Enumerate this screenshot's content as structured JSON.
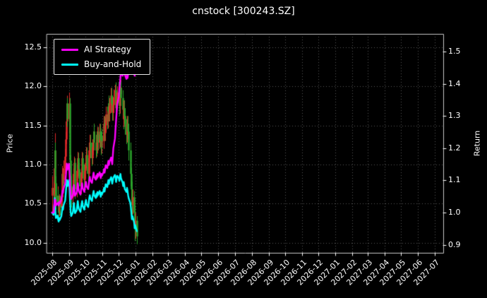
{
  "chart_data": {
    "type": "candlestick+line",
    "title": "cnstock [300243.SZ]",
    "ylabel_left": "Price",
    "ylabel_right": "Return",
    "background": "#000000",
    "text_color": "#ffffff",
    "grid": {
      "color": "#ffffff",
      "alpha": 0.35,
      "style": "dotted"
    },
    "legend_position": "upper-left",
    "x_range_days": [
      -10,
      715
    ],
    "price_range": [
      9.87,
      12.67
    ],
    "return_range": [
      0.875,
      1.555
    ],
    "price_ticks": [
      10.0,
      10.5,
      11.0,
      11.5,
      12.0,
      12.5
    ],
    "return_ticks": [
      0.9,
      1.0,
      1.1,
      1.2,
      1.3,
      1.4,
      1.5
    ],
    "x_ticks": {
      "labels": [
        "2025-08",
        "2025-09",
        "2025-10",
        "2025-11",
        "2025-12",
        "2026-01",
        "2026-02",
        "2026-03",
        "2026-04",
        "2026-05",
        "2026-06",
        "2026-07",
        "2026-08",
        "2026-09",
        "2026-10",
        "2026-11",
        "2026-12",
        "2027-01",
        "2027-02",
        "2027-03",
        "2027-04",
        "2027-05",
        "2027-06",
        "2027-07"
      ],
      "days": [
        0,
        31,
        61,
        92,
        122,
        153,
        184,
        212,
        243,
        273,
        304,
        334,
        365,
        396,
        426,
        457,
        487,
        518,
        549,
        577,
        608,
        638,
        669,
        699
      ]
    },
    "candles": {
      "up_color": "#e02828",
      "down_color": "#2aa22a",
      "days": [
        0,
        3,
        4,
        5,
        6,
        7,
        10,
        11,
        12,
        13,
        14,
        17,
        18,
        19,
        20,
        21,
        24,
        25,
        26,
        27,
        28,
        31,
        32,
        33,
        34,
        35,
        38,
        39,
        40,
        41,
        42,
        45,
        46,
        47,
        48,
        49,
        52,
        53,
        54,
        55,
        56,
        59,
        60,
        61,
        62,
        63,
        66,
        67,
        68,
        69,
        70,
        73,
        74,
        75,
        76,
        77,
        80,
        81,
        82,
        83,
        84,
        87,
        88,
        89,
        90,
        91,
        94,
        95,
        96,
        97,
        98,
        101,
        102,
        103,
        104,
        105,
        108,
        109,
        110,
        111,
        112,
        115,
        116,
        117,
        118,
        119,
        122,
        123,
        124,
        125,
        126,
        129,
        130,
        131,
        132,
        133,
        136,
        137,
        138,
        139,
        140,
        143,
        144,
        145,
        146,
        147,
        150,
        151,
        152,
        155
      ],
      "open": [
        10.6,
        10.7,
        10.62,
        10.95,
        11.18,
        10.76,
        10.52,
        10.6,
        10.48,
        10.4,
        10.52,
        10.45,
        10.58,
        10.72,
        10.88,
        10.8,
        10.95,
        11.1,
        11.32,
        11.55,
        11.78,
        11.58,
        11.78,
        11.45,
        11.05,
        10.72,
        10.58,
        10.7,
        10.88,
        11.02,
        10.82,
        10.68,
        10.78,
        10.92,
        11.08,
        10.94,
        10.82,
        10.72,
        10.88,
        10.98,
        11.08,
        10.92,
        10.8,
        10.92,
        11.02,
        11.12,
        10.98,
        10.88,
        11.02,
        11.18,
        11.28,
        11.18,
        11.08,
        11.22,
        11.32,
        11.42,
        11.28,
        11.18,
        11.32,
        11.22,
        11.38,
        11.28,
        11.42,
        11.32,
        11.22,
        11.36,
        11.3,
        11.42,
        11.52,
        11.4,
        11.5,
        11.64,
        11.55,
        11.68,
        11.78,
        11.65,
        11.75,
        11.88,
        11.78,
        11.66,
        11.76,
        11.86,
        11.95,
        11.86,
        11.72,
        11.82,
        11.92,
        11.85,
        11.75,
        11.9,
        11.98,
        11.85,
        11.7,
        11.58,
        11.72,
        11.62,
        11.48,
        11.38,
        11.52,
        11.42,
        11.28,
        11.18,
        11.02,
        10.88,
        10.68,
        10.48,
        10.58,
        10.38,
        10.18,
        10.28
      ],
      "high": [
        10.85,
        10.78,
        11.05,
        11.4,
        11.28,
        10.85,
        10.72,
        10.68,
        10.55,
        10.62,
        10.6,
        10.66,
        10.82,
        10.98,
        10.95,
        11.05,
        11.2,
        11.42,
        11.65,
        11.88,
        11.85,
        11.92,
        11.85,
        11.55,
        11.12,
        10.85,
        10.8,
        10.95,
        11.1,
        11.08,
        10.92,
        10.88,
        11.0,
        11.16,
        11.15,
        11.02,
        10.9,
        10.95,
        11.06,
        11.16,
        11.15,
        11.0,
        11.0,
        11.12,
        11.22,
        11.22,
        11.08,
        11.12,
        11.28,
        11.38,
        11.38,
        11.28,
        11.32,
        11.42,
        11.52,
        11.52,
        11.38,
        11.42,
        11.42,
        11.48,
        11.48,
        11.52,
        11.52,
        11.42,
        11.46,
        11.46,
        11.52,
        11.62,
        11.62,
        11.6,
        11.74,
        11.74,
        11.78,
        11.88,
        11.88,
        11.85,
        11.98,
        11.98,
        11.88,
        11.86,
        11.96,
        12.02,
        12.05,
        11.96,
        11.92,
        12.0,
        12.05,
        11.95,
        12.0,
        12.08,
        12.06,
        11.95,
        11.8,
        11.82,
        11.82,
        11.72,
        11.58,
        11.62,
        11.62,
        11.52,
        11.38,
        11.28,
        11.1,
        10.96,
        10.78,
        10.68,
        10.66,
        10.48,
        10.38,
        10.34
      ],
      "low": [
        10.35,
        10.5,
        10.55,
        10.85,
        10.6,
        10.42,
        10.45,
        10.38,
        10.28,
        10.34,
        10.35,
        10.4,
        10.52,
        10.66,
        10.72,
        10.75,
        10.88,
        11.05,
        11.26,
        11.5,
        11.48,
        11.4,
        11.3,
        10.95,
        10.58,
        10.45,
        10.48,
        10.6,
        10.78,
        10.72,
        10.56,
        10.58,
        10.68,
        10.84,
        10.85,
        10.72,
        10.6,
        10.62,
        10.78,
        10.88,
        10.82,
        10.7,
        10.72,
        10.82,
        10.95,
        10.88,
        10.78,
        10.8,
        10.95,
        11.08,
        11.08,
        10.98,
        11.0,
        11.12,
        11.22,
        11.18,
        11.08,
        11.1,
        11.12,
        11.14,
        11.18,
        11.2,
        11.22,
        11.12,
        11.14,
        11.2,
        11.2,
        11.32,
        11.3,
        11.3,
        11.42,
        11.45,
        11.46,
        11.58,
        11.55,
        11.55,
        11.66,
        11.68,
        11.56,
        11.56,
        11.66,
        11.76,
        11.76,
        11.62,
        11.62,
        11.72,
        11.75,
        11.62,
        11.65,
        11.8,
        11.75,
        11.6,
        11.45,
        11.48,
        11.52,
        11.38,
        11.26,
        11.28,
        11.32,
        11.16,
        11.05,
        10.88,
        10.72,
        10.5,
        10.3,
        10.36,
        10.22,
        10.02,
        10.05,
        9.98
      ],
      "close": [
        10.7,
        10.62,
        10.95,
        11.18,
        10.76,
        10.52,
        10.6,
        10.48,
        10.4,
        10.52,
        10.45,
        10.58,
        10.72,
        10.88,
        10.8,
        10.95,
        11.1,
        11.32,
        11.55,
        11.78,
        11.58,
        11.78,
        11.45,
        11.05,
        10.72,
        10.58,
        10.7,
        10.88,
        11.02,
        10.82,
        10.68,
        10.78,
        10.92,
        11.08,
        10.94,
        10.82,
        10.72,
        10.88,
        10.98,
        11.08,
        10.92,
        10.8,
        10.92,
        11.02,
        11.12,
        10.98,
        10.88,
        11.02,
        11.18,
        11.28,
        11.18,
        11.08,
        11.22,
        11.32,
        11.42,
        11.28,
        11.18,
        11.32,
        11.22,
        11.38,
        11.28,
        11.42,
        11.32,
        11.22,
        11.36,
        11.3,
        11.42,
        11.52,
        11.4,
        11.5,
        11.64,
        11.55,
        11.68,
        11.78,
        11.65,
        11.75,
        11.88,
        11.78,
        11.66,
        11.76,
        11.86,
        11.95,
        11.86,
        11.72,
        11.82,
        11.92,
        11.85,
        11.75,
        11.9,
        11.98,
        11.85,
        11.7,
        11.58,
        11.72,
        11.62,
        11.48,
        11.38,
        11.52,
        11.42,
        11.28,
        11.18,
        11.02,
        10.88,
        10.68,
        10.48,
        10.58,
        10.38,
        10.18,
        10.28,
        10.08
      ]
    },
    "series": [
      {
        "name": "AI Strategy",
        "color": "#ff00ff",
        "axis": "return",
        "values": [
          1.0,
          1.0,
          1.018,
          1.04,
          1.04,
          1.022,
          1.03,
          1.03,
          1.022,
          1.033,
          1.028,
          1.04,
          1.053,
          1.068,
          1.061,
          1.075,
          1.09,
          1.11,
          1.131,
          1.152,
          1.133,
          1.152,
          1.12,
          1.086,
          1.056,
          1.042,
          1.054,
          1.071,
          1.085,
          1.066,
          1.052,
          1.062,
          1.075,
          1.091,
          1.078,
          1.066,
          1.056,
          1.071,
          1.081,
          1.091,
          1.076,
          1.064,
          1.076,
          1.086,
          1.095,
          1.082,
          1.073,
          1.086,
          1.101,
          1.111,
          1.101,
          1.092,
          1.105,
          1.114,
          1.124,
          1.111,
          1.102,
          1.115,
          1.106,
          1.12,
          1.111,
          1.125,
          1.116,
          1.107,
          1.12,
          1.114,
          1.125,
          1.135,
          1.124,
          1.133,
          1.147,
          1.138,
          1.151,
          1.161,
          1.148,
          1.158,
          1.171,
          1.161,
          1.15,
          1.175,
          1.2,
          1.23,
          1.26,
          1.285,
          1.31,
          1.335,
          1.36,
          1.385,
          1.4,
          1.42,
          1.438,
          1.425,
          1.438,
          1.452,
          1.44,
          1.428,
          1.415,
          1.428,
          1.418,
          1.43,
          1.442,
          1.436,
          1.448,
          1.44,
          1.432,
          1.44,
          1.432,
          1.425,
          1.432,
          1.438
        ]
      },
      {
        "name": "Buy-and-Hold",
        "color": "#00ffff",
        "axis": "return",
        "values": [
          1.0,
          0.993,
          1.023,
          1.045,
          1.006,
          0.983,
          0.991,
          0.979,
          0.972,
          0.983,
          0.977,
          0.989,
          1.002,
          1.017,
          1.009,
          1.023,
          1.037,
          1.058,
          1.079,
          1.101,
          1.082,
          1.101,
          1.07,
          1.033,
          1.002,
          0.989,
          1.0,
          1.017,
          1.03,
          1.011,
          0.998,
          1.007,
          1.021,
          1.036,
          1.022,
          1.011,
          1.002,
          1.017,
          1.026,
          1.036,
          1.021,
          1.009,
          1.021,
          1.03,
          1.039,
          1.026,
          1.017,
          1.03,
          1.045,
          1.054,
          1.045,
          1.036,
          1.049,
          1.058,
          1.067,
          1.054,
          1.045,
          1.058,
          1.049,
          1.064,
          1.054,
          1.067,
          1.058,
          1.049,
          1.062,
          1.056,
          1.067,
          1.077,
          1.065,
          1.075,
          1.088,
          1.079,
          1.092,
          1.101,
          1.089,
          1.098,
          1.11,
          1.101,
          1.09,
          1.099,
          1.108,
          1.117,
          1.108,
          1.095,
          1.105,
          1.114,
          1.107,
          1.098,
          1.112,
          1.12,
          1.107,
          1.093,
          1.082,
          1.095,
          1.086,
          1.073,
          1.064,
          1.077,
          1.067,
          1.054,
          1.045,
          1.03,
          1.017,
          0.998,
          0.979,
          0.989,
          0.97,
          0.951,
          0.961,
          0.942
        ]
      }
    ]
  }
}
